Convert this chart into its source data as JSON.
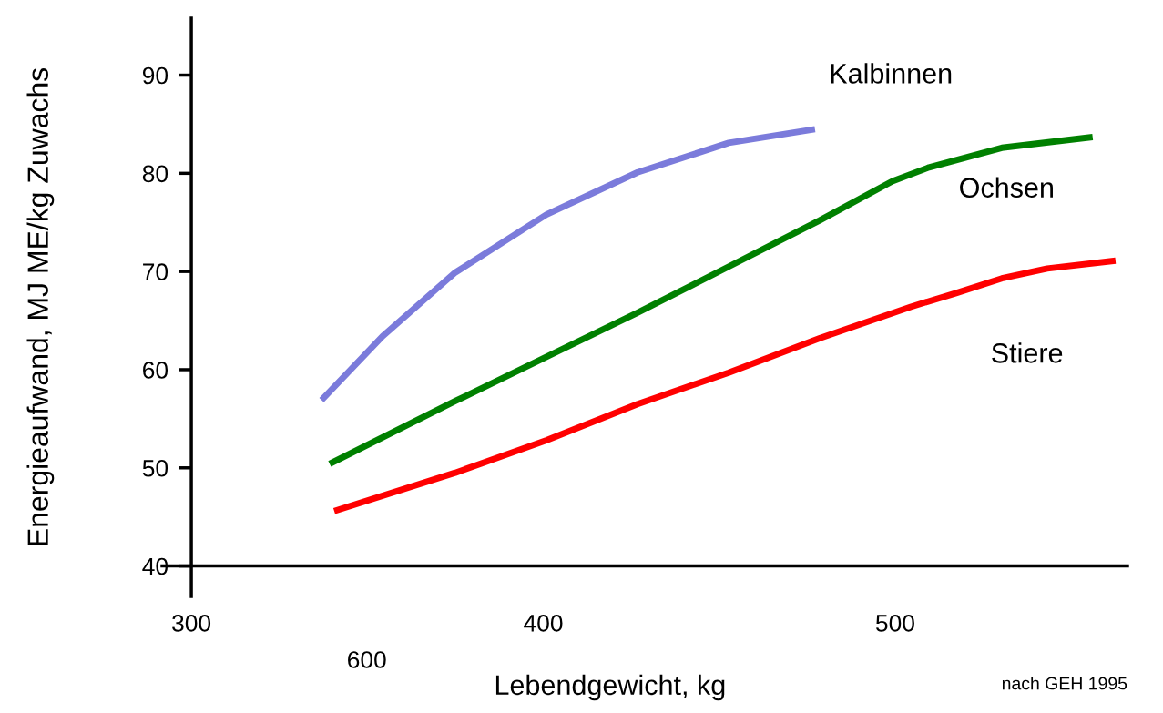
{
  "chart_data": {
    "type": "line",
    "xlabel": "Lebendgewicht, kg",
    "ylabel": "Energieaufwand, MJ ME/kg Zuwachs",
    "xlim": [
      291.7,
      566
    ],
    "ylim": [
      36.9,
      95.8
    ],
    "xticks": [
      300,
      400,
      500
    ],
    "yticks": [
      40,
      50,
      60,
      70,
      80,
      90
    ],
    "grid": false,
    "legend": false,
    "marker": "none",
    "line_style": "solid",
    "annotations": [
      "600",
      "nach GEH 1995"
    ],
    "series": [
      {
        "name": "Kalbinnen",
        "color": "#7b7bdb",
        "x": [
          337,
          354.3,
          375,
          400.9,
          426.8,
          452.7,
          477.2
        ],
        "values": [
          56.9,
          63.4,
          69.9,
          75.8,
          80.1,
          83.1,
          84.5
        ]
      },
      {
        "name": "Ochsen",
        "color": "#008000",
        "x": [
          339.3,
          375,
          400.9,
          426.8,
          452.7,
          478.5,
          499.2,
          509.6,
          530.3,
          556.1
        ],
        "values": [
          50.4,
          56.8,
          61.3,
          65.8,
          70.5,
          75.2,
          79.2,
          80.6,
          82.6,
          83.7
        ]
      },
      {
        "name": "Stiere",
        "color": "#ff0000",
        "x": [
          340.6,
          375,
          400.9,
          426.8,
          452.7,
          478.5,
          504.4,
          517.3,
          530.3,
          543.2,
          562.6
        ],
        "values": [
          45.6,
          49.5,
          52.8,
          56.5,
          59.7,
          63.2,
          66.4,
          67.8,
          69.3,
          70.3,
          71.1
        ]
      }
    ]
  }
}
